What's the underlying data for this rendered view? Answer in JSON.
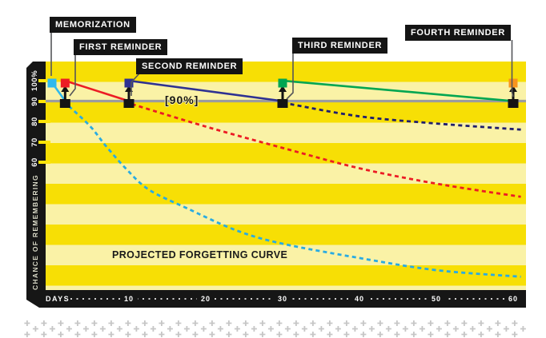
{
  "y_axis": {
    "title": "CHANCE OF REMEMBERING",
    "ticks": [
      "100%",
      "90",
      "80",
      "70",
      "60"
    ]
  },
  "x_axis": {
    "title": "DAYS",
    "ticks": [
      "10",
      "20",
      "30",
      "40",
      "50",
      "60"
    ]
  },
  "annotations": {
    "ninety_percent": "[90%]",
    "curve_label": "PROJECTED FORGETTING CURVE"
  },
  "colors": {
    "stripe_bright": "#F7DF05",
    "stripe_pale": "#FAF2A6",
    "axis_bar": "#161616",
    "tick_yellow": "#FFE506",
    "threshold_gray": "#9C9C9E",
    "memorization_cyan": "#2FB9ED",
    "first_red": "#EC1C24",
    "second_blue": "#2E3192",
    "third_green": "#00A651",
    "fourth_orange": "#F7941D",
    "dashed_navy": "#1F1D6E"
  },
  "chart_data": {
    "type": "line",
    "xlabel": "DAYS",
    "ylabel": "CHANCE OF REMEMBERING",
    "x_ticks": [
      10,
      20,
      30,
      40,
      50,
      60
    ],
    "y_ticks": [
      100,
      90,
      80,
      70,
      60
    ],
    "x_range": [
      0,
      62
    ],
    "grid": "striped-bands",
    "legend_position": "none",
    "retention_threshold_pct": 90,
    "reminders": [
      {
        "label": "MEMORIZATION",
        "day": 0,
        "pct": 100,
        "color": "#2FB9ED",
        "floor_marker": false
      },
      {
        "label": "FIRST REMINDER",
        "day": 1.7,
        "pct": 100,
        "color": "#EC1C24",
        "floor_marker": true
      },
      {
        "label": "SECOND REMINDER",
        "day": 10,
        "pct": 100,
        "color": "#2E3192",
        "floor_marker": true
      },
      {
        "label": "THIRD REMINDER",
        "day": 30,
        "pct": 100,
        "color": "#00A651",
        "floor_marker": true
      },
      {
        "label": "FOURTH REMINDER",
        "day": 60,
        "pct": 100,
        "color": "#F7941D",
        "floor_marker": true
      }
    ],
    "series": [
      {
        "name": "forgetting curve initial drop",
        "color": "#2FB9ED",
        "style": "solid",
        "points": [
          [
            0.2,
            98
          ],
          [
            2.2,
            87.5
          ]
        ]
      },
      {
        "name": "projected forgetting curve (no reminders)",
        "color": "#29ABE2",
        "style": "dashed",
        "points": [
          [
            2.2,
            87.5
          ],
          [
            5,
            77.5
          ],
          [
            7,
            68
          ],
          [
            9.7,
            56.5
          ],
          [
            12.6,
            46.5
          ],
          [
            17.5,
            37.5
          ],
          [
            24,
            26.5
          ],
          [
            30,
            20
          ],
          [
            40,
            13
          ],
          [
            50,
            7
          ],
          [
            61,
            3.8
          ]
        ]
      },
      {
        "name": "retention after first reminder",
        "color": "#EC1C24",
        "style": "solid",
        "points": [
          [
            1.7,
            100
          ],
          [
            10,
            90
          ]
        ]
      },
      {
        "name": "projected decay after first reminder",
        "color": "#EC1C24",
        "style": "dashed",
        "points": [
          [
            10.4,
            88.5
          ],
          [
            20,
            77.5
          ],
          [
            30,
            67
          ],
          [
            40,
            57
          ],
          [
            50,
            49.5
          ],
          [
            61,
            43
          ]
        ]
      },
      {
        "name": "retention after second reminder",
        "color": "#2E3192",
        "style": "solid",
        "points": [
          [
            10,
            100
          ],
          [
            30,
            90
          ]
        ]
      },
      {
        "name": "projected decay after second reminder",
        "color": "#1F1D6E",
        "style": "dashed",
        "points": [
          [
            31,
            88.5
          ],
          [
            40,
            82.5
          ],
          [
            50,
            79
          ],
          [
            61,
            76
          ]
        ]
      },
      {
        "name": "retention after third reminder",
        "color": "#00A651",
        "style": "solid",
        "points": [
          [
            30,
            100
          ],
          [
            60,
            90
          ]
        ]
      }
    ]
  }
}
